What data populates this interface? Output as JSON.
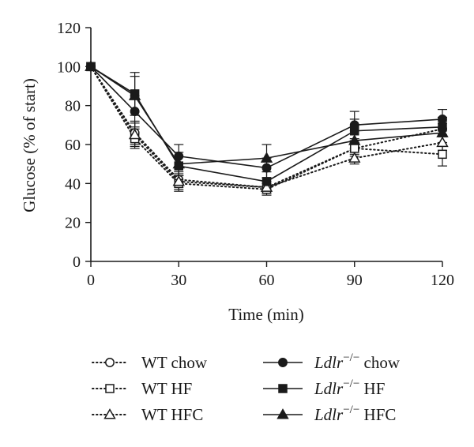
{
  "chart_data": {
    "type": "line",
    "title": "",
    "xlabel": "Time (min)",
    "ylabel": "Glucose (% of start)",
    "xlim": [
      0,
      120
    ],
    "ylim": [
      0,
      120
    ],
    "xticks": [
      0,
      30,
      60,
      90,
      120
    ],
    "yticks": [
      0,
      20,
      40,
      60,
      80,
      100,
      120
    ],
    "grid": false,
    "legend_position": "bottom",
    "series": [
      {
        "name": "WT chow",
        "name_main": "WT chow",
        "name_suffix": "",
        "style": "dotted",
        "marker": "circle-open",
        "x": [
          0,
          15,
          30,
          60,
          90,
          120
        ],
        "y": [
          100,
          66,
          42,
          38,
          58,
          68
        ],
        "err": [
          0,
          6,
          4,
          3,
          4,
          4
        ]
      },
      {
        "name": "WT HF",
        "name_main": "WT HF",
        "name_suffix": "",
        "style": "dotted",
        "marker": "square-open",
        "x": [
          0,
          15,
          30,
          60,
          90,
          120
        ],
        "y": [
          100,
          63,
          40,
          37,
          58,
          55
        ],
        "err": [
          0,
          5,
          4,
          3,
          3,
          6
        ]
      },
      {
        "name": "WT HFC",
        "name_main": "WT HFC",
        "name_suffix": "",
        "style": "dotted",
        "marker": "triangle-open",
        "x": [
          0,
          15,
          30,
          60,
          90,
          120
        ],
        "y": [
          100,
          65,
          41,
          38,
          53,
          61
        ],
        "err": [
          0,
          6,
          4,
          3,
          3,
          4
        ]
      },
      {
        "name": "Ldlr−/− chow",
        "name_main": "Ldlr",
        "name_sup": "−/−",
        "name_suffix": " chow",
        "style": "solid",
        "marker": "circle-filled",
        "x": [
          0,
          15,
          30,
          60,
          90,
          120
        ],
        "y": [
          100,
          77,
          54,
          48,
          70,
          73
        ],
        "err": [
          0,
          8,
          6,
          5,
          7,
          5
        ]
      },
      {
        "name": "Ldlr−/− HF",
        "name_main": "Ldlr",
        "name_sup": "−/−",
        "name_suffix": " HF",
        "style": "solid",
        "marker": "square-filled",
        "x": [
          0,
          15,
          30,
          60,
          90,
          120
        ],
        "y": [
          100,
          86,
          49,
          41,
          67,
          69
        ],
        "err": [
          0,
          11,
          5,
          5,
          6,
          5
        ]
      },
      {
        "name": "Ldlr−/− HFC",
        "name_main": "Ldlr",
        "name_sup": "−/−",
        "name_suffix": " HFC",
        "style": "solid",
        "marker": "triangle-filled",
        "x": [
          0,
          15,
          30,
          60,
          90,
          120
        ],
        "y": [
          100,
          85,
          50,
          53,
          62,
          66
        ],
        "err": [
          0,
          10,
          6,
          7,
          5,
          5
        ]
      }
    ]
  }
}
